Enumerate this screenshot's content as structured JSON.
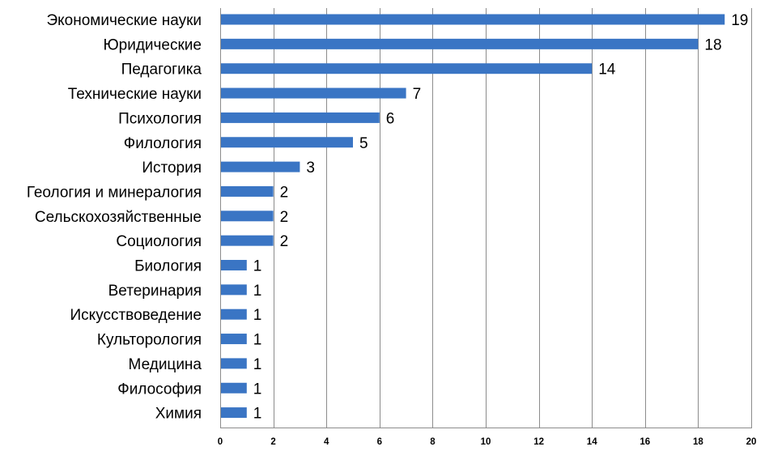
{
  "chart_data": {
    "type": "bar",
    "orientation": "horizontal",
    "categories": [
      "Экономические науки",
      "Юридические",
      "Педагогика",
      "Технические науки",
      "Психология",
      "Филология",
      "История",
      "Геология и минералогия",
      "Сельскохозяйственные",
      "Социология",
      "Биология",
      "Ветеринария",
      "Искусствоведение",
      "Культорология",
      "Медицина",
      "Философия",
      "Химия"
    ],
    "values": [
      19,
      18,
      14,
      7,
      6,
      5,
      3,
      2,
      2,
      2,
      1,
      1,
      1,
      1,
      1,
      1,
      1
    ],
    "xlim": [
      0,
      20
    ],
    "x_ticks": [
      0,
      2,
      4,
      6,
      8,
      10,
      12,
      14,
      16,
      18,
      20
    ],
    "grid": "vertical",
    "legend": "none",
    "bar_color": "#3a75c4",
    "title": "",
    "xlabel": "",
    "ylabel": ""
  }
}
